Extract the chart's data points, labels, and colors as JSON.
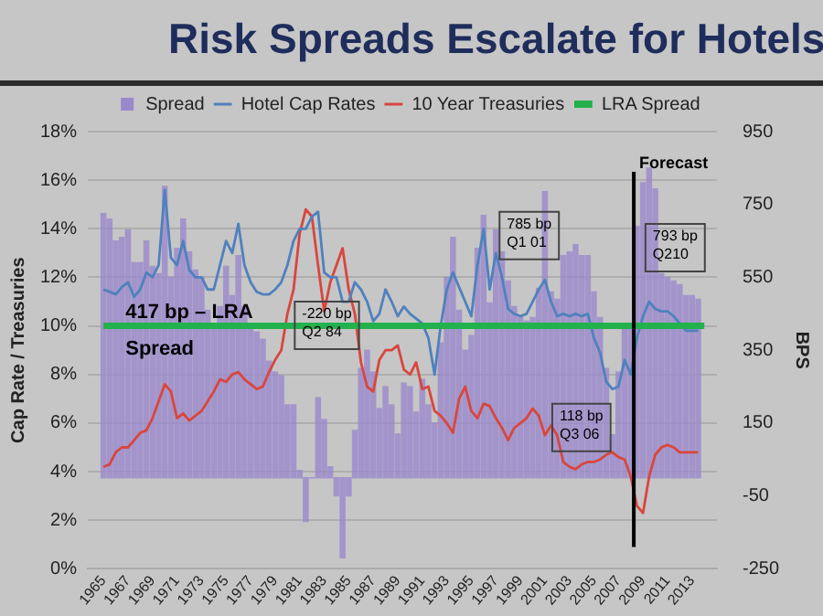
{
  "chart_data": {
    "type": "bar",
    "title": "Risk Spreads Escalate for Hotels",
    "ylabel": "Cap Rate / Treasuries",
    "y2label": "BPS",
    "x": [
      1965,
      1965.5,
      1966,
      1966.5,
      1967,
      1967.5,
      1968,
      1968.5,
      1969,
      1969.5,
      1970,
      1970.5,
      1971,
      1971.5,
      1972,
      1972.5,
      1973,
      1973.5,
      1974,
      1974.5,
      1975,
      1975.5,
      1976,
      1976.5,
      1977,
      1977.5,
      1978,
      1978.5,
      1979,
      1979.5,
      1980,
      1980.5,
      1981,
      1981.5,
      1982,
      1982.5,
      1983,
      1983.5,
      1984,
      1984.5,
      1985,
      1985.5,
      1986,
      1986.5,
      1987,
      1987.5,
      1988,
      1988.5,
      1989,
      1989.5,
      1990,
      1990.5,
      1991,
      1991.5,
      1992,
      1992.5,
      1993,
      1993.5,
      1994,
      1994.5,
      1995,
      1995.5,
      1996,
      1996.5,
      1997,
      1997.5,
      1998,
      1998.5,
      1999,
      1999.5,
      2000,
      2000.5,
      2001,
      2001.5,
      2002,
      2002.5,
      2003,
      2003.5,
      2004,
      2004.5,
      2005,
      2005.5,
      2006,
      2006.5,
      2007,
      2007.5,
      2008,
      2008.5,
      2009,
      2009.5,
      2010,
      2010.5,
      2011,
      2011.5,
      2012,
      2012.5,
      2013,
      2013.5
    ],
    "series": [
      {
        "name": "Spread",
        "axis": "y2",
        "color": "#9a88cc",
        "values": [
          725,
          710,
          650,
          660,
          680,
          590,
          590,
          650,
          580,
          560,
          800,
          550,
          630,
          710,
          620,
          570,
          550,
          460,
          420,
          470,
          580,
          500,
          610,
          470,
          420,
          400,
          380,
          320,
          290,
          280,
          200,
          200,
          20,
          -120,
          0,
          220,
          160,
          30,
          -50,
          -220,
          -50,
          130,
          300,
          350,
          290,
          190,
          250,
          200,
          120,
          260,
          250,
          180,
          270,
          200,
          150,
          370,
          550,
          660,
          460,
          350,
          390,
          630,
          720,
          480,
          680,
          620,
          540,
          470,
          440,
          430,
          440,
          520,
          785,
          510,
          490,
          610,
          620,
          640,
          610,
          610,
          510,
          440,
          300,
          118,
          290,
          410,
          420,
          690,
          810,
          850,
          793,
          560,
          550,
          540,
          530,
          500,
          500,
          490
        ]
      },
      {
        "name": "Hotel Cap Rates",
        "type": "line",
        "color": "#4f81bd",
        "values": [
          11.5,
          11.4,
          11.3,
          11.6,
          11.8,
          11.2,
          11.5,
          12.2,
          12.0,
          12.5,
          15.6,
          12.8,
          12.5,
          13.5,
          12.3,
          12.0,
          12.0,
          11.5,
          11.5,
          12.5,
          13.5,
          13.0,
          14.2,
          12.5,
          11.8,
          11.4,
          11.3,
          11.3,
          11.5,
          11.8,
          12.5,
          13.5,
          14.0,
          14.0,
          14.5,
          14.7,
          12.2,
          12.0,
          12.0,
          11.0,
          11.0,
          11.8,
          11.5,
          11.0,
          10.2,
          10.5,
          11.5,
          11.0,
          10.4,
          10.8,
          10.5,
          10.3,
          10.1,
          9.5,
          8.0,
          10.0,
          11.5,
          12.2,
          11.6,
          11.0,
          10.4,
          12.5,
          14.0,
          11.5,
          13.0,
          12.0,
          10.7,
          10.5,
          10.4,
          10.5,
          11.0,
          11.5,
          11.9,
          11.0,
          10.4,
          10.5,
          10.4,
          10.5,
          10.4,
          10.5,
          9.5,
          8.9,
          7.7,
          7.4,
          7.5,
          8.6,
          8.0,
          9.5,
          10.4,
          11.0,
          10.7,
          10.6,
          10.6,
          10.4,
          10.1,
          9.8,
          9.8,
          9.8
        ]
      },
      {
        "name": "10 Year Treasuries",
        "type": "line",
        "color": "#d9463e",
        "values": [
          4.2,
          4.3,
          4.8,
          5.0,
          5.0,
          5.3,
          5.6,
          5.7,
          6.2,
          6.9,
          7.6,
          7.3,
          6.2,
          6.4,
          6.1,
          6.3,
          6.5,
          6.9,
          7.3,
          7.8,
          7.7,
          8.0,
          8.1,
          7.8,
          7.6,
          7.4,
          7.5,
          8.1,
          8.6,
          9.0,
          10.5,
          11.5,
          13.8,
          14.8,
          14.5,
          12.5,
          10.6,
          11.8,
          12.5,
          13.2,
          11.5,
          10.5,
          8.5,
          7.5,
          7.3,
          8.6,
          9.0,
          9.0,
          9.2,
          8.2,
          8.0,
          8.5,
          7.4,
          7.5,
          6.5,
          6.3,
          6.0,
          5.6,
          7.0,
          7.5,
          6.5,
          6.2,
          6.8,
          6.7,
          6.2,
          5.8,
          5.3,
          5.8,
          6.0,
          6.2,
          6.6,
          6.3,
          5.5,
          5.9,
          5.5,
          4.4,
          4.2,
          4.1,
          4.3,
          4.4,
          4.4,
          4.5,
          4.7,
          4.8,
          4.6,
          4.5,
          3.8,
          2.6,
          2.3,
          3.8,
          4.7,
          5.0,
          5.1,
          5.0,
          4.8,
          4.8,
          4.8,
          4.8
        ]
      },
      {
        "name": "LRA Spread",
        "type": "line",
        "axis": "y2",
        "color": "#22b14c",
        "x": [
          1965,
          2014
        ],
        "values": [
          417,
          417
        ]
      }
    ],
    "xlim": [
      1964.75,
      2014
    ],
    "xticks": [
      1965,
      1967,
      1969,
      1971,
      1973,
      1975,
      1977,
      1979,
      1981,
      1983,
      1985,
      1987,
      1989,
      1991,
      1993,
      1995,
      1997,
      1999,
      2001,
      2003,
      2005,
      2007,
      2009,
      2011,
      2013
    ],
    "ylim": [
      0,
      18
    ],
    "yticks": [
      {
        "value": 0,
        "label": "0%"
      },
      {
        "value": 2,
        "label": "2%"
      },
      {
        "value": 4,
        "label": "4%"
      },
      {
        "value": 6,
        "label": "6%"
      },
      {
        "value": 8,
        "label": "8%"
      },
      {
        "value": 10,
        "label": "10%"
      },
      {
        "value": 12,
        "label": "12%"
      },
      {
        "value": 14,
        "label": "14%"
      },
      {
        "value": 16,
        "label": "16%"
      },
      {
        "value": 18,
        "label": "18%"
      }
    ],
    "y2lim": [
      -250,
      950
    ],
    "y2ticks": [
      -250,
      -50,
      150,
      350,
      550,
      750,
      950
    ],
    "ref_lines": [
      {
        "axis": "x",
        "value": 2008.25,
        "label": "Forecast",
        "color": "#000000"
      }
    ],
    "annotations": [
      "417 bp – LRA Spread",
      "-220 bp Q2 84",
      "785 bp Q1 01",
      "793 bp Q210",
      "118 bp Q3 06"
    ],
    "grid": "y",
    "legend": "top",
    "marker": "none",
    "line_style": "solid"
  }
}
